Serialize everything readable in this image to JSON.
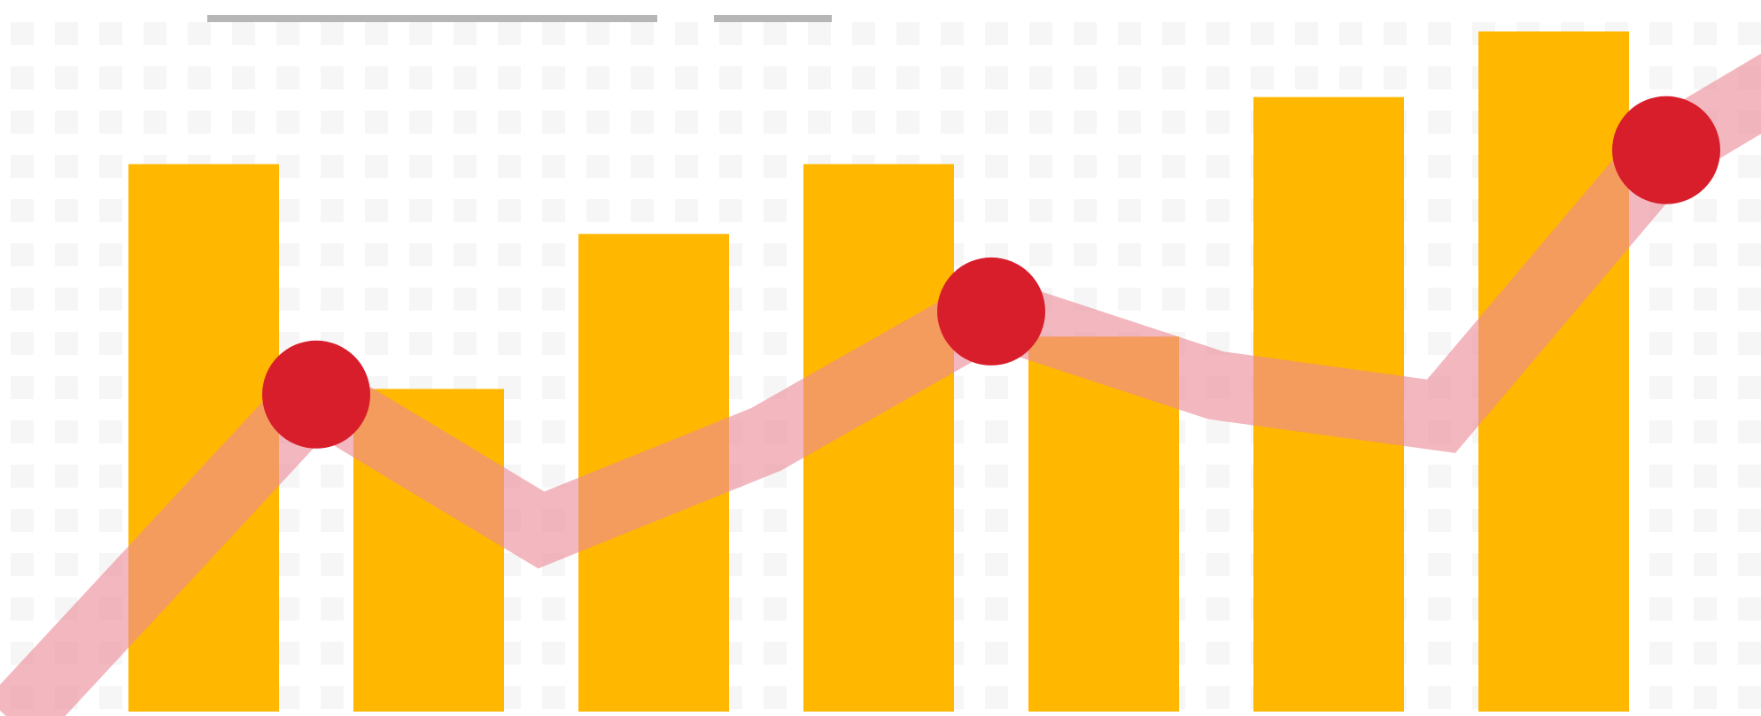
{
  "colors": {
    "background": "#ffffff",
    "grid_dot": "#f6f6f6",
    "bar": "#ffb700",
    "trend_line": "#ec8a97",
    "marker": "#d81e2a",
    "placeholder_bar": "#b6b6b6"
  },
  "header": {
    "title_placeholder_present": true,
    "subtitle_placeholder_present": true
  },
  "chart_data": {
    "type": "bar",
    "title": "",
    "xlabel": "",
    "ylabel": "",
    "categories": [
      "",
      "",
      "",
      "",
      "",
      "",
      ""
    ],
    "ylim": [
      0,
      100
    ],
    "grid": true,
    "legend": "none",
    "series": [
      {
        "kind": "bar",
        "values": [
          78.4,
          46.2,
          68.4,
          78.4,
          53.7,
          88.0,
          97.4
        ]
      },
      {
        "kind": "line",
        "x": [
          -0.85,
          0.5,
          1.5,
          2.5,
          3.5,
          4.5,
          5.5,
          6.5,
          7.1
        ],
        "values": [
          -1.5,
          45.4,
          26.0,
          39.0,
          57.3,
          46.7,
          42.3,
          80.4,
          91.9
        ]
      },
      {
        "kind": "markers",
        "x": [
          0.5,
          3.5,
          6.5
        ],
        "values": [
          45.4,
          57.3,
          80.4
        ]
      }
    ]
  }
}
